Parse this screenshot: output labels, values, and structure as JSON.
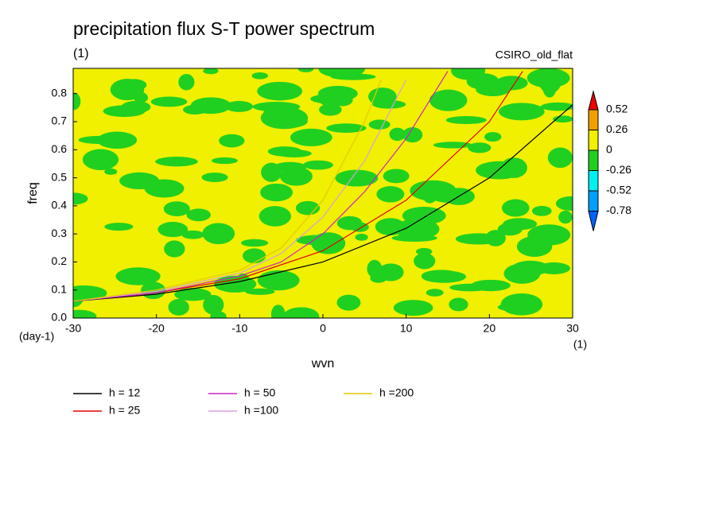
{
  "chart_data": {
    "type": "line",
    "title": "precipitation flux S-T power spectrum",
    "subtitle": "(1)",
    "label_right": "CSIRO_old_flat",
    "x_label": "wvn",
    "y_label": "freq",
    "x_unit": "(1)",
    "y_unit": "(day-1)",
    "xlim": [
      -30,
      30
    ],
    "ylim": [
      0,
      0.89
    ],
    "xticks": [
      -30,
      -20,
      -10,
      0,
      10,
      20,
      30
    ],
    "yticks": [
      {
        "value": 0,
        "label": "0.0"
      },
      0.1,
      0.2,
      0.3,
      0.4,
      0.5,
      0.6,
      0.7,
      0.8
    ],
    "series": [
      {
        "name": "h = 12",
        "color": "#000000",
        "x": [
          -30,
          -20,
          -10,
          0,
          10,
          20,
          30
        ],
        "values": [
          0.06,
          0.085,
          0.13,
          0.2,
          0.32,
          0.5,
          0.76
        ]
      },
      {
        "name": "h = 25",
        "color": "#e00000",
        "x": [
          -30,
          -20,
          -10,
          0,
          10,
          20,
          24
        ],
        "values": [
          0.06,
          0.09,
          0.14,
          0.24,
          0.42,
          0.7,
          0.88
        ]
      },
      {
        "name": "h = 50",
        "color": "#d020c0",
        "x": [
          -30,
          -20,
          -10,
          -5,
          0,
          5,
          10,
          15
        ],
        "values": [
          0.06,
          0.09,
          0.15,
          0.2,
          0.3,
          0.45,
          0.64,
          0.88
        ]
      },
      {
        "name": "h =100",
        "color": "#d8a0d8",
        "x": [
          -30,
          -20,
          -10,
          -5,
          0,
          5,
          10
        ],
        "values": [
          0.06,
          0.095,
          0.16,
          0.23,
          0.36,
          0.56,
          0.85
        ]
      },
      {
        "name": "h =200",
        "color": "#e8c800",
        "x": [
          -30,
          -20,
          -10,
          -5,
          0,
          5,
          7
        ],
        "values": [
          0.06,
          0.1,
          0.17,
          0.25,
          0.42,
          0.7,
          0.85
        ]
      }
    ],
    "colorbar": {
      "levels": [
        0.52,
        0.26,
        0,
        -0.26,
        -0.52,
        -0.78
      ],
      "colors": [
        "#f00000",
        "#f0a000",
        "#f0f000",
        "#20d020",
        "#00f0f0",
        "#00a0ff",
        "#0064ff"
      ]
    }
  }
}
